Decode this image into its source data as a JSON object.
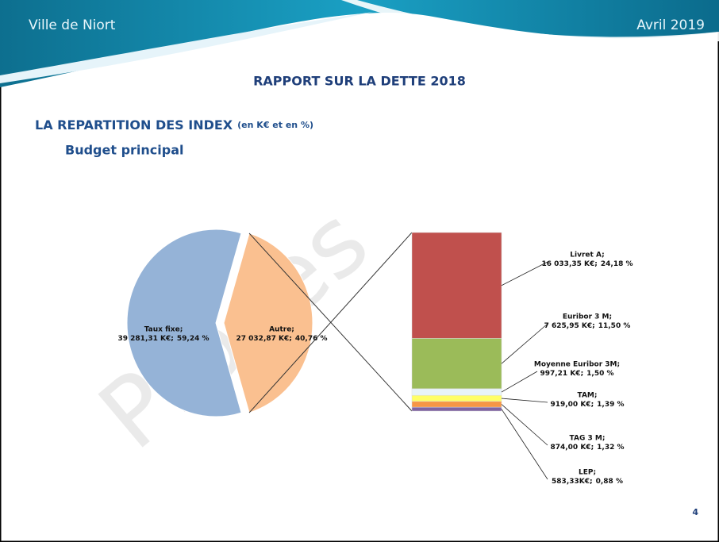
{
  "header": {
    "left": "Ville de Niort",
    "right": "Avril 2019"
  },
  "watermark": "Procès",
  "page_number": "4",
  "chart_data": {
    "type": "pie",
    "title": "RAPPORT SUR LA DETTE 2018",
    "subtitle": "LA REPARTITION DES INDEX",
    "subtitle_note": "(en K€ et en %)",
    "section": "Budget principal",
    "separator": ";",
    "categories": [
      "Taux fixe",
      "Autre"
    ],
    "values": [
      39281.31,
      27032.87
    ],
    "value_labels": [
      "39 281,31 K€",
      "27 032,87 K€"
    ],
    "percents": [
      59.24,
      40.76
    ],
    "percent_labels": [
      "59,24 %",
      "40,76 %"
    ],
    "colors": [
      "#95b3d7",
      "#fac090"
    ],
    "breakdown": {
      "categories": [
        "Livret A",
        "Euribor 3 M",
        "Moyenne Euribor 3M",
        "TAM",
        "TAG 3 M",
        "LEP"
      ],
      "values": [
        16033.35,
        7625.95,
        997.21,
        919.0,
        874.0,
        583.33
      ],
      "value_labels": [
        "16 033,35 K€",
        "7 625,95 K€",
        "997,21 K€",
        "919,00 K€",
        "874,00 K€",
        "583,33K€"
      ],
      "percents": [
        24.18,
        11.5,
        1.5,
        1.39,
        1.32,
        0.88
      ],
      "percent_labels": [
        "24,18 %",
        "11,50 %",
        "1,50 %",
        "1,39 %",
        "1,32 %",
        "0,88 %"
      ],
      "colors": [
        "#c0504d",
        "#9bbb59",
        "#e8f4f8",
        "#ffff66",
        "#f79646",
        "#8064a2"
      ]
    }
  }
}
